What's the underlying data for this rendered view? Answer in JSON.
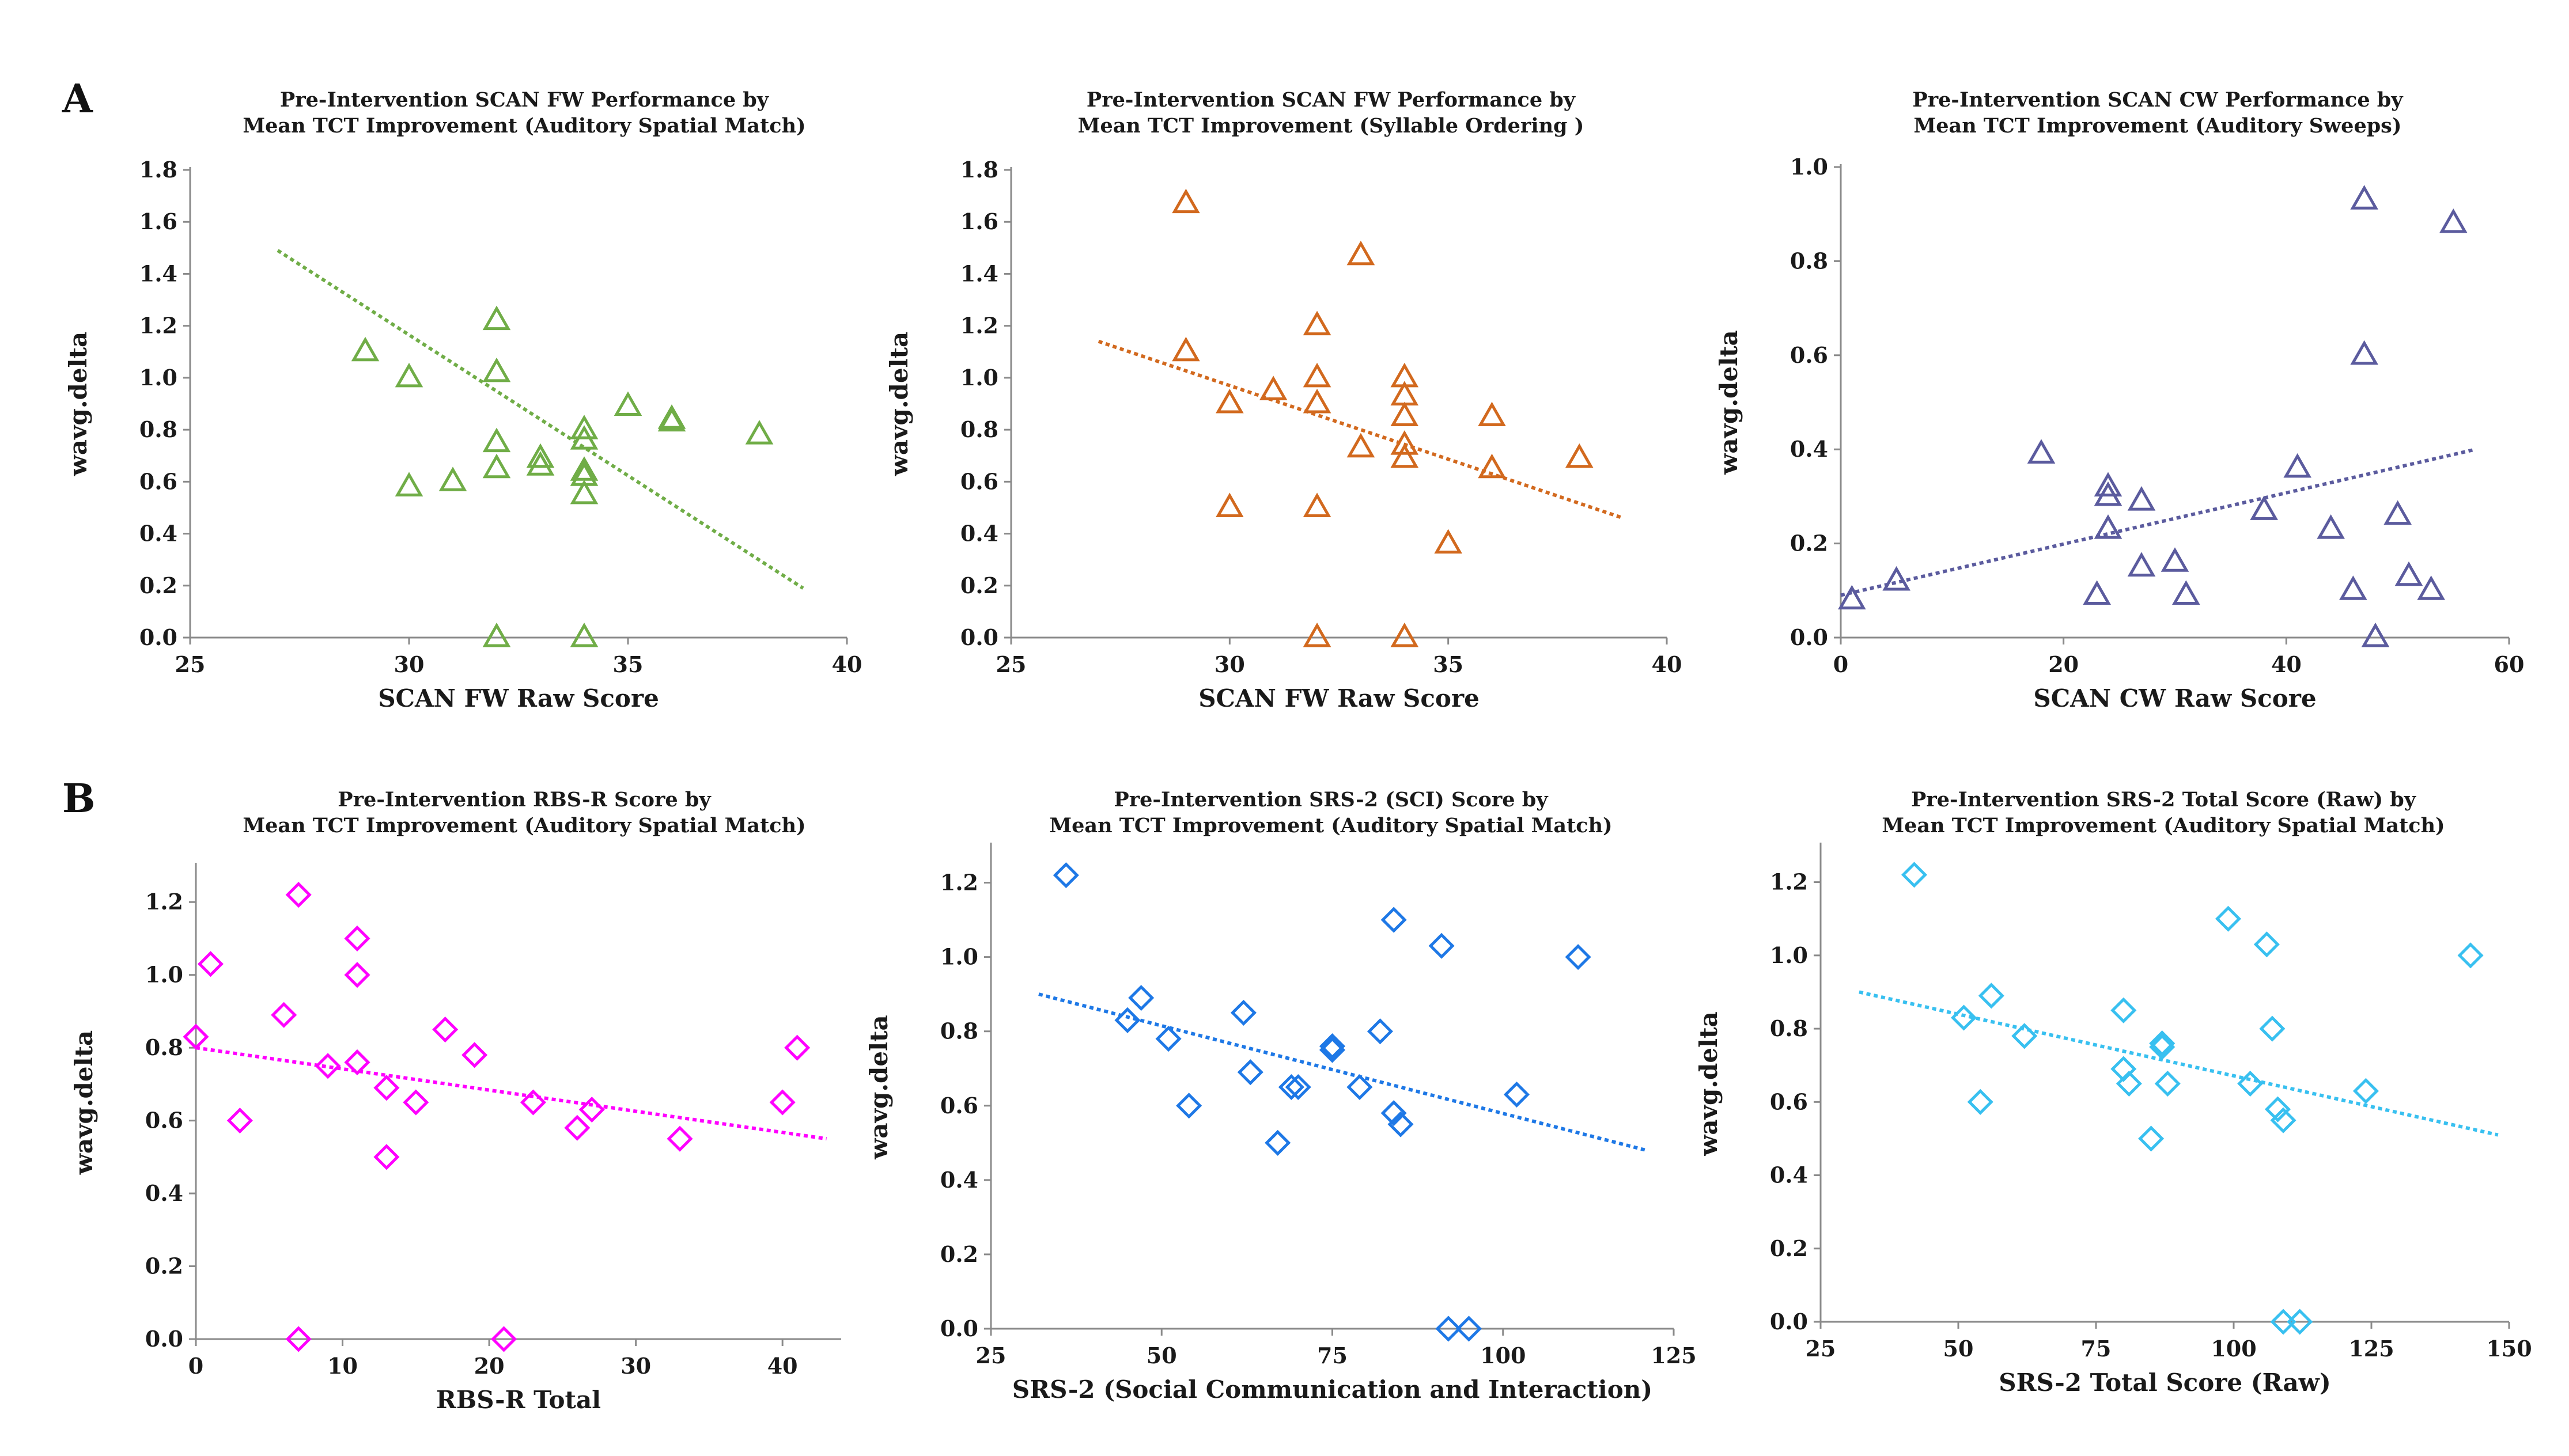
{
  "panel_labels": [
    "A",
    "B"
  ],
  "chart_data": [
    {
      "type": "scatter",
      "panel": "A",
      "title": [
        "Pre-Intervention SCAN FW Performance by",
        "Mean TCT Improvement (Auditory Spatial Match)"
      ],
      "xlabel": "SCAN FW Raw Score",
      "ylabel": "wavg.delta",
      "xlim": [
        25,
        40
      ],
      "ylim": [
        0,
        1.8
      ],
      "xticks": [
        25,
        30,
        35,
        40
      ],
      "xtick_labels": [
        "25",
        "30",
        "35",
        "40"
      ],
      "yticks": [
        0,
        0.2,
        0.4,
        0.6,
        0.8,
        1.0,
        1.2,
        1.4,
        1.6,
        1.8
      ],
      "ytick_labels": [
        "0.0",
        "0.2",
        "0.4",
        "0.6",
        "0.8",
        "1.0",
        "1.2",
        "1.4",
        "1.6",
        "1.8"
      ],
      "marker": "triangle",
      "color": "#70ad47",
      "points": [
        [
          29,
          1.1
        ],
        [
          30,
          1.0
        ],
        [
          30,
          0.58
        ],
        [
          31,
          0.6
        ],
        [
          32,
          1.22
        ],
        [
          32,
          1.02
        ],
        [
          32,
          0.75
        ],
        [
          32,
          0.65
        ],
        [
          32,
          0.0
        ],
        [
          33,
          0.69
        ],
        [
          33,
          0.66
        ],
        [
          34,
          0.8
        ],
        [
          34,
          0.76
        ],
        [
          34,
          0.64
        ],
        [
          34,
          0.62
        ],
        [
          34,
          0.55
        ],
        [
          34,
          0.0
        ],
        [
          35,
          0.89
        ],
        [
          36,
          0.84
        ],
        [
          36,
          0.83
        ],
        [
          38,
          0.78
        ]
      ],
      "trendline": [
        [
          27,
          1.49
        ],
        [
          39,
          0.19
        ]
      ]
    },
    {
      "type": "scatter",
      "panel": "A",
      "title": [
        "Pre-Intervention SCAN FW Performance by",
        "Mean TCT Improvement (Syllable Ordering )"
      ],
      "xlabel": "SCAN FW Raw Score",
      "ylabel": "wavg.delta",
      "xlim": [
        25,
        40
      ],
      "ylim": [
        0,
        1.8
      ],
      "xticks": [
        25,
        30,
        35,
        40
      ],
      "xtick_labels": [
        "25",
        "30",
        "35",
        "40"
      ],
      "yticks": [
        0,
        0.2,
        0.4,
        0.6,
        0.8,
        1.0,
        1.2,
        1.4,
        1.6,
        1.8
      ],
      "ytick_labels": [
        "0.0",
        "0.2",
        "0.4",
        "0.6",
        "0.8",
        "1.0",
        "1.2",
        "1.4",
        "1.6",
        "1.8"
      ],
      "marker": "triangle",
      "color": "#d2691e",
      "points": [
        [
          29,
          1.67
        ],
        [
          29,
          1.1
        ],
        [
          30,
          0.9
        ],
        [
          30,
          0.5
        ],
        [
          31,
          0.95
        ],
        [
          32,
          1.2
        ],
        [
          32,
          1.0
        ],
        [
          32,
          0.9
        ],
        [
          32,
          0.5
        ],
        [
          32,
          0.0
        ],
        [
          33,
          1.47
        ],
        [
          33,
          0.73
        ],
        [
          34,
          1.0
        ],
        [
          34,
          0.93
        ],
        [
          34,
          0.85
        ],
        [
          34,
          0.74
        ],
        [
          34,
          0.69
        ],
        [
          34,
          0.0
        ],
        [
          35,
          0.36
        ],
        [
          36,
          0.85
        ],
        [
          36,
          0.65
        ],
        [
          38,
          0.69
        ]
      ],
      "trendline": [
        [
          27,
          1.14
        ],
        [
          39,
          0.46
        ]
      ]
    },
    {
      "type": "scatter",
      "panel": "A",
      "title": [
        "Pre-Intervention SCAN CW Performance by",
        "Mean TCT Improvement (Auditory Sweeps)"
      ],
      "xlabel": "SCAN CW Raw Score",
      "ylabel": "wavg.delta",
      "xlim": [
        0,
        60
      ],
      "ylim": [
        0,
        1.0
      ],
      "xticks": [
        0,
        20,
        40,
        60
      ],
      "xtick_labels": [
        "0",
        "20",
        "40",
        "60"
      ],
      "yticks": [
        0,
        0.2,
        0.4,
        0.6,
        0.8,
        1.0
      ],
      "ytick_labels": [
        "0.0",
        "0.2",
        "0.4",
        "0.6",
        "0.8",
        "1.0"
      ],
      "marker": "triangle",
      "color": "#5b5b9e",
      "points": [
        [
          1,
          0.08
        ],
        [
          5,
          0.12
        ],
        [
          18,
          0.39
        ],
        [
          23,
          0.09
        ],
        [
          24,
          0.32
        ],
        [
          24,
          0.3
        ],
        [
          24,
          0.23
        ],
        [
          27,
          0.29
        ],
        [
          27,
          0.15
        ],
        [
          30,
          0.16
        ],
        [
          31,
          0.09
        ],
        [
          38,
          0.27
        ],
        [
          41,
          0.36
        ],
        [
          44,
          0.23
        ],
        [
          46,
          0.1
        ],
        [
          47,
          0.93
        ],
        [
          47,
          0.6
        ],
        [
          48,
          0.0
        ],
        [
          50,
          0.26
        ],
        [
          51,
          0.13
        ],
        [
          53,
          0.1
        ],
        [
          55,
          0.88
        ]
      ],
      "trendline": [
        [
          0,
          0.09
        ],
        [
          57,
          0.4
        ]
      ]
    },
    {
      "type": "scatter",
      "panel": "B",
      "title": [
        "Pre-Intervention RBS-R Score by",
        "Mean TCT Improvement (Auditory Spatial Match)"
      ],
      "xlabel": "RBS-R Total",
      "ylabel": "wavg.delta",
      "xlim": [
        0,
        44
      ],
      "ylim": [
        0,
        1.3
      ],
      "xticks": [
        0,
        10,
        20,
        30,
        40
      ],
      "xtick_labels": [
        "0",
        "10",
        "20",
        "30",
        "40"
      ],
      "yticks": [
        0,
        0.2,
        0.4,
        0.6,
        0.8,
        1.0,
        1.2
      ],
      "ytick_labels": [
        "0.0",
        "0.2",
        "0.4",
        "0.6",
        "0.8",
        "1.0",
        "1.2"
      ],
      "marker": "diamond",
      "color": "#ff00ff",
      "points": [
        [
          0,
          0.83
        ],
        [
          1,
          1.03
        ],
        [
          3,
          0.6
        ],
        [
          6,
          0.89
        ],
        [
          7,
          1.22
        ],
        [
          7,
          0.0
        ],
        [
          9,
          0.75
        ],
        [
          11,
          1.1
        ],
        [
          11,
          1.0
        ],
        [
          11,
          0.76
        ],
        [
          13,
          0.69
        ],
        [
          13,
          0.5
        ],
        [
          15,
          0.65
        ],
        [
          17,
          0.85
        ],
        [
          19,
          0.78
        ],
        [
          21,
          0.0
        ],
        [
          23,
          0.65
        ],
        [
          26,
          0.58
        ],
        [
          27,
          0.63
        ],
        [
          33,
          0.55
        ],
        [
          40,
          0.65
        ],
        [
          41,
          0.8
        ]
      ],
      "trendline": [
        [
          0,
          0.8
        ],
        [
          43,
          0.55
        ]
      ]
    },
    {
      "type": "scatter",
      "panel": "B",
      "title": [
        "Pre-Intervention SRS-2 (SCI) Score by",
        "Mean TCT Improvement (Auditory Spatial Match)"
      ],
      "xlabel": "SRS-2 (Social Communication and Interaction)",
      "ylabel": "wavg.delta",
      "xlim": [
        25,
        125
      ],
      "ylim": [
        0,
        1.3
      ],
      "xticks": [
        25,
        50,
        75,
        100,
        125
      ],
      "xtick_labels": [
        "25",
        "50",
        "75",
        "100",
        "125"
      ],
      "yticks": [
        0,
        0.2,
        0.4,
        0.6,
        0.8,
        1.0,
        1.2
      ],
      "ytick_labels": [
        "0.0",
        "0.2",
        "0.4",
        "0.6",
        "0.8",
        "1.0",
        "1.2"
      ],
      "marker": "diamond",
      "color": "#1e78e6",
      "points": [
        [
          36,
          1.22
        ],
        [
          45,
          0.83
        ],
        [
          47,
          0.89
        ],
        [
          51,
          0.78
        ],
        [
          54,
          0.6
        ],
        [
          62,
          0.85
        ],
        [
          63,
          0.69
        ],
        [
          67,
          0.5
        ],
        [
          69,
          0.65
        ],
        [
          70,
          0.65
        ],
        [
          75,
          0.76
        ],
        [
          75,
          0.75
        ],
        [
          79,
          0.65
        ],
        [
          82,
          0.8
        ],
        [
          84,
          1.1
        ],
        [
          84,
          0.58
        ],
        [
          85,
          0.55
        ],
        [
          91,
          1.03
        ],
        [
          92,
          0.0
        ],
        [
          95,
          0.0
        ],
        [
          102,
          0.63
        ],
        [
          111,
          1.0
        ]
      ],
      "trendline": [
        [
          32,
          0.9
        ],
        [
          121,
          0.48
        ]
      ]
    },
    {
      "type": "scatter",
      "panel": "B",
      "title": [
        "Pre-Intervention SRS-2 Total Score  (Raw) by",
        "Mean TCT Improvement (Auditory Spatial Match)"
      ],
      "xlabel": "SRS-2 Total Score (Raw)",
      "ylabel": "wavg.delta",
      "xlim": [
        25,
        150
      ],
      "ylim": [
        0,
        1.3
      ],
      "xticks": [
        25,
        50,
        75,
        100,
        125,
        150
      ],
      "xtick_labels": [
        "25",
        "50",
        "75",
        "100",
        "125",
        "150"
      ],
      "yticks": [
        0,
        0.2,
        0.4,
        0.6,
        0.8,
        1.0,
        1.2
      ],
      "ytick_labels": [
        "0.0",
        "0.2",
        "0.4",
        "0.6",
        "0.8",
        "1.0",
        "1.2"
      ],
      "marker": "diamond",
      "color": "#38c0f0",
      "points": [
        [
          42,
          1.22
        ],
        [
          51,
          0.83
        ],
        [
          54,
          0.6
        ],
        [
          56,
          0.89
        ],
        [
          62,
          0.78
        ],
        [
          80,
          0.85
        ],
        [
          80,
          0.69
        ],
        [
          81,
          0.65
        ],
        [
          85,
          0.5
        ],
        [
          87,
          0.76
        ],
        [
          87,
          0.75
        ],
        [
          88,
          0.65
        ],
        [
          99,
          1.1
        ],
        [
          103,
          0.65
        ],
        [
          106,
          1.03
        ],
        [
          107,
          0.8
        ],
        [
          108,
          0.58
        ],
        [
          109,
          0.55
        ],
        [
          109,
          0.0
        ],
        [
          112,
          0.0
        ],
        [
          124,
          0.63
        ],
        [
          143,
          1.0
        ]
      ],
      "trendline": [
        [
          32,
          0.9
        ],
        [
          148,
          0.51
        ]
      ]
    }
  ]
}
